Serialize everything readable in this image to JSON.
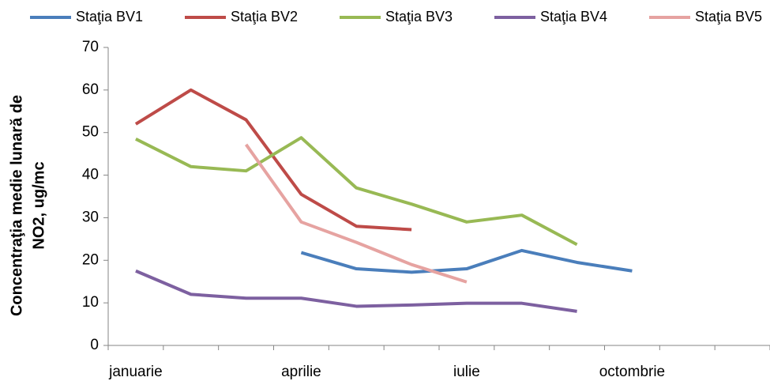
{
  "chart_data": {
    "type": "line",
    "y_label": [
      "Concentraţia medie lunară de",
      "NO2, ug/mc"
    ],
    "categories": [
      "januarie",
      null,
      null,
      "aprilie",
      null,
      null,
      "iulie",
      null,
      null,
      "octombrie",
      null,
      null
    ],
    "series": [
      {
        "name": "Staţia BV1",
        "color": "#4a7ebb",
        "values": [
          null,
          null,
          null,
          21.8,
          18,
          17.2,
          18,
          22.3,
          19.5,
          17.5,
          null,
          null
        ]
      },
      {
        "name": "Staţia BV2",
        "color": "#be4b48",
        "values": [
          52,
          60,
          53,
          35.5,
          28,
          27.2,
          null,
          null,
          null,
          null,
          null,
          null
        ]
      },
      {
        "name": "Staţia BV3",
        "color": "#98b954",
        "values": [
          48.5,
          42,
          41,
          48.8,
          37,
          33.2,
          29,
          30.6,
          23.7,
          null,
          null,
          null
        ]
      },
      {
        "name": "Staţia BV4",
        "color": "#7d60a0",
        "values": [
          17.5,
          12,
          11.1,
          11.1,
          9.2,
          9.5,
          9.9,
          9.9,
          8,
          null,
          null,
          null
        ]
      },
      {
        "name": "Staţia BV5",
        "color": "#e6a3a1",
        "values": [
          null,
          null,
          47.2,
          29,
          24.2,
          19,
          14.9,
          null,
          null,
          null,
          null,
          null
        ]
      }
    ],
    "ylim": [
      0,
      70
    ],
    "yticks": [
      0,
      10,
      20,
      30,
      40,
      50,
      60,
      70
    ],
    "legend": "top"
  }
}
